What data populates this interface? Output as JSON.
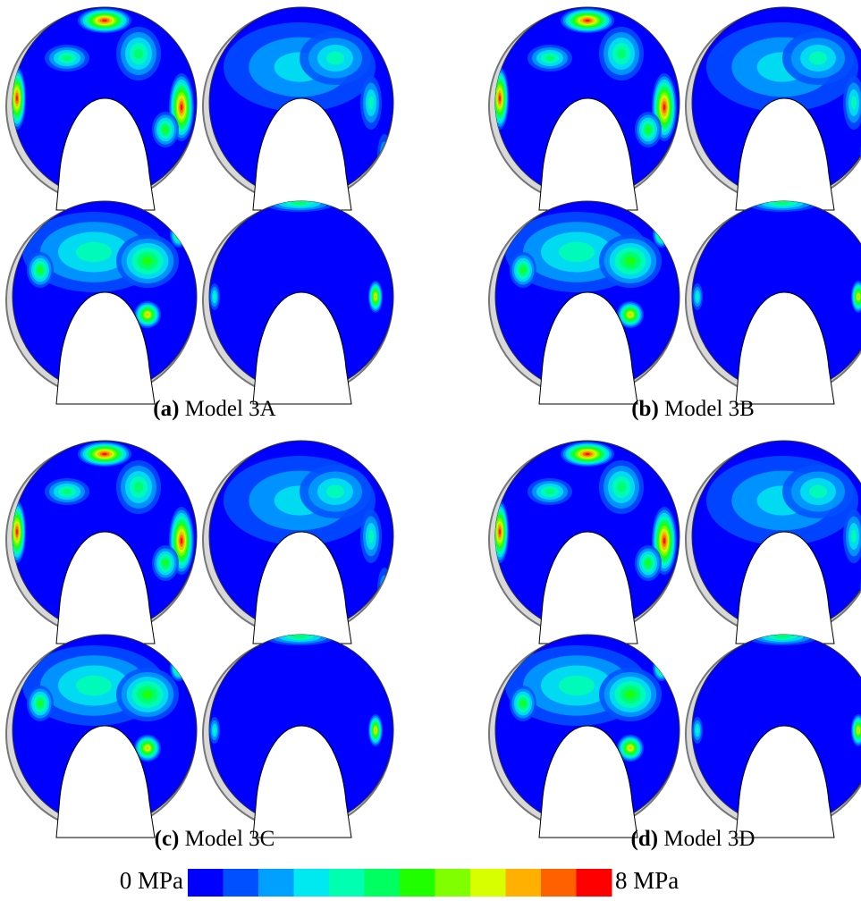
{
  "panels": [
    {
      "label": "(a)",
      "title": "Model 3A"
    },
    {
      "label": "(b)",
      "title": "Model 3B"
    },
    {
      "label": "(c)",
      "title": "Model 3C"
    },
    {
      "label": "(d)",
      "title": "Model 3D"
    }
  ],
  "colorbar": {
    "min_label": "0 MPa",
    "max_label": "8 MPa",
    "colors": [
      "#0000ff",
      "#0050ff",
      "#00a0ff",
      "#00e8f0",
      "#00ffb0",
      "#00ff60",
      "#20ff00",
      "#80ff00",
      "#d8ff00",
      "#ffb000",
      "#ff6000",
      "#ff0000"
    ]
  }
}
